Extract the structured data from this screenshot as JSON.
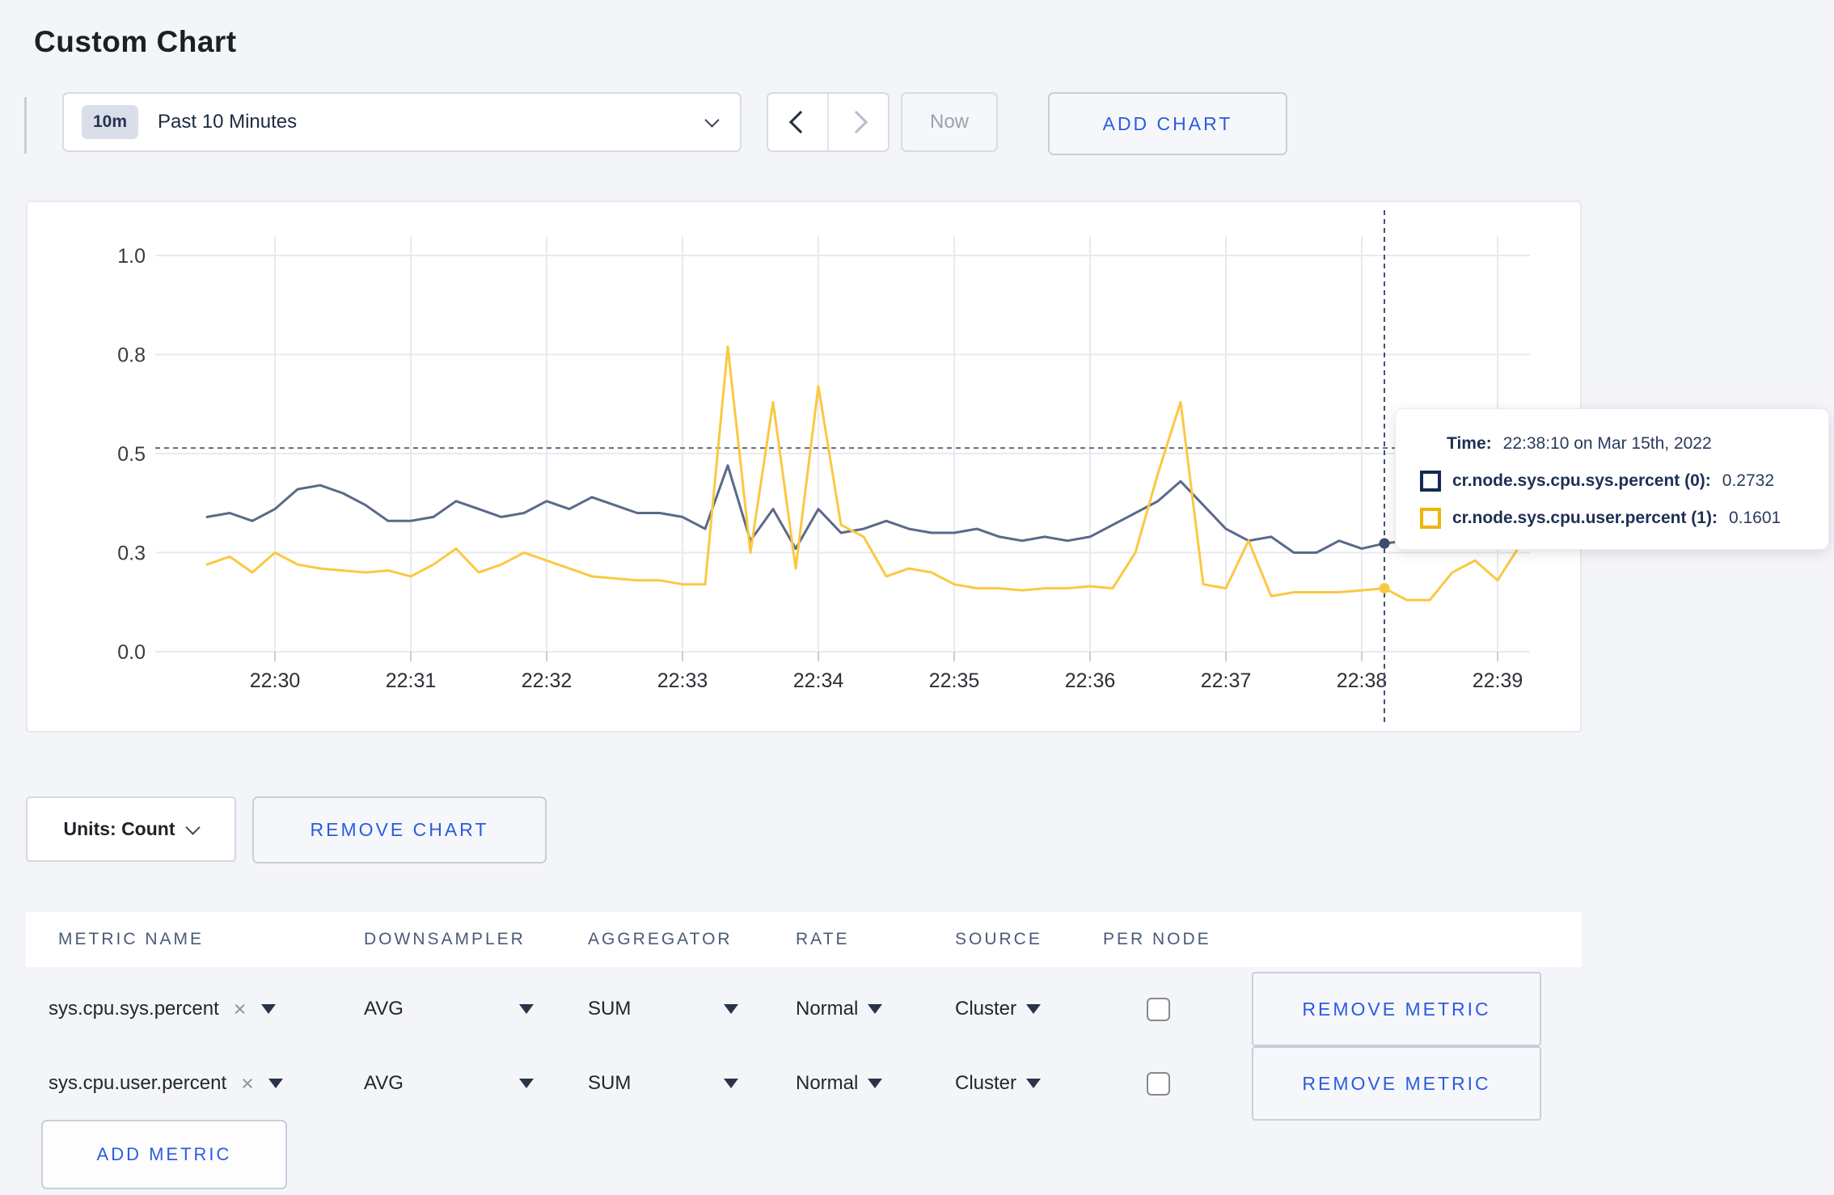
{
  "page": {
    "title": "Custom Chart"
  },
  "toolbar": {
    "time_scale_badge": "10m",
    "time_scale_label": "Past 10 Minutes",
    "now_label": "Now",
    "add_chart_label": "ADD CHART"
  },
  "chart_data": {
    "type": "line",
    "title": "",
    "xlabel": "",
    "ylabel": "",
    "grid": true,
    "ylim": [
      0,
      1
    ],
    "y_ticks": [
      {
        "v": 0,
        "label": "0.0"
      },
      {
        "v": 0.25,
        "label": "0.3"
      },
      {
        "v": 0.5,
        "label": "0.5"
      },
      {
        "v": 0.75,
        "label": "0.8"
      },
      {
        "v": 1,
        "label": "1.0"
      }
    ],
    "x_tick_labels": [
      "22:30",
      "22:31",
      "22:32",
      "22:33",
      "22:34",
      "22:35",
      "22:36",
      "22:37",
      "22:38",
      "22:39"
    ],
    "x_tick_minutes": [
      0,
      1,
      2,
      3,
      4,
      5,
      6,
      7,
      8,
      9
    ],
    "series_start_min": -0.5,
    "point_interval_min": 0.1666667,
    "series": [
      {
        "name": "cr.node.sys.cpu.sys.percent (0)",
        "color": "#5a6a88",
        "values": [
          0.34,
          0.35,
          0.33,
          0.36,
          0.41,
          0.42,
          0.4,
          0.37,
          0.33,
          0.33,
          0.34,
          0.38,
          0.36,
          0.34,
          0.35,
          0.38,
          0.36,
          0.39,
          0.37,
          0.35,
          0.35,
          0.34,
          0.31,
          0.47,
          0.28,
          0.36,
          0.26,
          0.36,
          0.3,
          0.31,
          0.33,
          0.31,
          0.3,
          0.3,
          0.31,
          0.29,
          0.28,
          0.29,
          0.28,
          0.29,
          0.32,
          0.35,
          0.38,
          0.43,
          0.37,
          0.31,
          0.28,
          0.29,
          0.25,
          0.25,
          0.28,
          0.26,
          0.2732,
          0.28,
          0.31,
          0.3,
          0.3,
          0.31,
          0.3
        ]
      },
      {
        "name": "cr.node.sys.cpu.user.percent (1)",
        "color": "#fbc842",
        "values": [
          0.22,
          0.24,
          0.2,
          0.25,
          0.22,
          0.21,
          0.205,
          0.2,
          0.205,
          0.19,
          0.22,
          0.26,
          0.2,
          0.22,
          0.25,
          0.23,
          0.21,
          0.19,
          0.185,
          0.18,
          0.18,
          0.17,
          0.17,
          0.77,
          0.25,
          0.63,
          0.21,
          0.67,
          0.32,
          0.29,
          0.19,
          0.21,
          0.2,
          0.17,
          0.16,
          0.16,
          0.155,
          0.16,
          0.16,
          0.165,
          0.16,
          0.25,
          0.45,
          0.63,
          0.17,
          0.16,
          0.28,
          0.14,
          0.15,
          0.15,
          0.15,
          0.155,
          0.1601,
          0.13,
          0.13,
          0.2,
          0.23,
          0.18,
          0.27
        ]
      }
    ],
    "crosshair": {
      "time": "22:38:10",
      "x_min": 8.1667,
      "mouse_value": 0.514,
      "points": [
        {
          "v": 0.2732,
          "color": "#3d4d6d"
        },
        {
          "v": 0.1601,
          "color": "#fbc842"
        }
      ]
    },
    "colors": {
      "gridline": "#e8eaee",
      "crosshair": "#44536f"
    }
  },
  "tooltip": {
    "time_label": "Time:",
    "time_value": "22:38:10 on Mar 15th, 2022",
    "rows": [
      {
        "label": "cr.node.sys.cpu.sys.percent (0):",
        "value": "0.2732",
        "color": "#152a4d"
      },
      {
        "label": "cr.node.sys.cpu.user.percent (1):",
        "value": "0.1601",
        "color": "#f0b409"
      }
    ]
  },
  "chart_controls": {
    "units_label": "Units: Count",
    "remove_chart_label": "REMOVE CHART"
  },
  "metrics_table": {
    "headers": [
      "METRIC NAME",
      "DOWNSAMPLER",
      "AGGREGATOR",
      "RATE",
      "SOURCE",
      "PER NODE"
    ],
    "close_glyph": "×",
    "rows": [
      {
        "metric_name": "sys.cpu.sys.percent",
        "downsampler": "AVG",
        "aggregator": "SUM",
        "rate": "Normal",
        "source": "Cluster",
        "per_node": false
      },
      {
        "metric_name": "sys.cpu.user.percent",
        "downsampler": "AVG",
        "aggregator": "SUM",
        "rate": "Normal",
        "source": "Cluster",
        "per_node": false
      }
    ],
    "remove_metric_label": "REMOVE METRIC",
    "add_metric_label": "ADD METRIC"
  }
}
